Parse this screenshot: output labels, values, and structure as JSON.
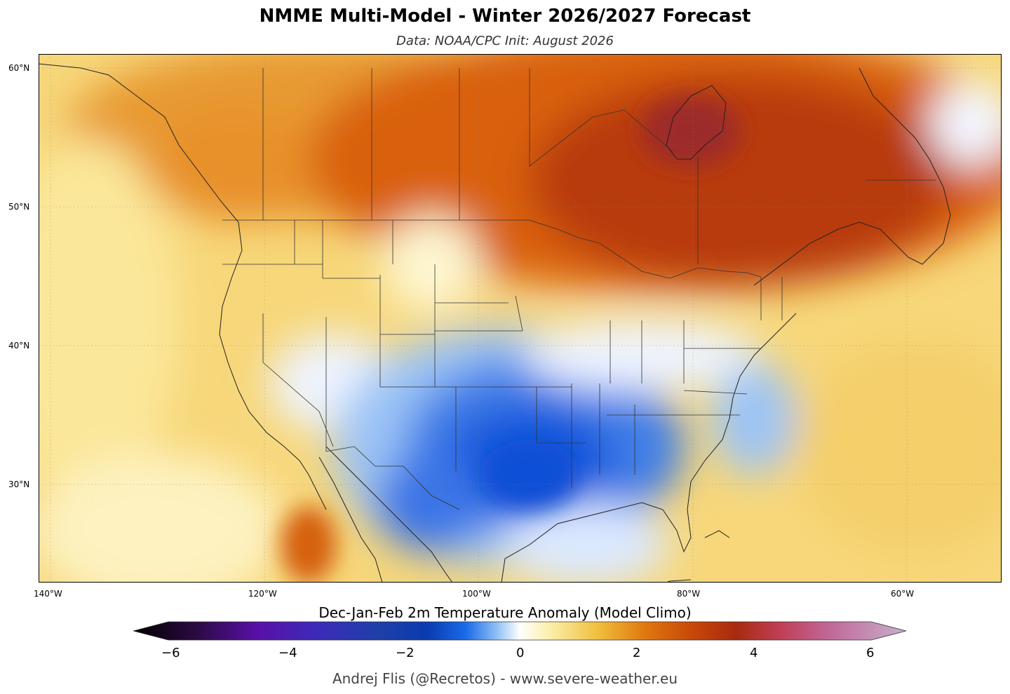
{
  "header": {
    "title": "NMME Multi-Model - Winter 2026/2027 Forecast",
    "subtitle": "Data: NOAA/CPC   Init: August 2026"
  },
  "map": {
    "lat_labels": [
      "60°N",
      "50°N",
      "40°N",
      "30°N"
    ],
    "lon_labels": [
      "140°W",
      "120°W",
      "100°W",
      "80°W",
      "60°W"
    ]
  },
  "colorbar": {
    "title": "Dec-Jan-Feb 2m Temperature Anomaly (Model Climo)",
    "ticks": [
      "−6",
      "−4",
      "−2",
      "0",
      "2",
      "4",
      "6"
    ],
    "range": [
      -6,
      6
    ]
  },
  "footer": {
    "credit": "Andrej Flis (@Recretos) - www.severe-weather.eu"
  },
  "colors": {
    "deep-cold": "#000000",
    "purple": "#5a0fa8",
    "blue": "#1f5fe0",
    "light-blue": "#bcd8fb",
    "neutral": "#ffffff",
    "yellow": "#f8e28c",
    "orange": "#e07a10",
    "red": "#a82a0a",
    "magenta": "#c4406e",
    "lilac": "#c8a8c8"
  }
}
